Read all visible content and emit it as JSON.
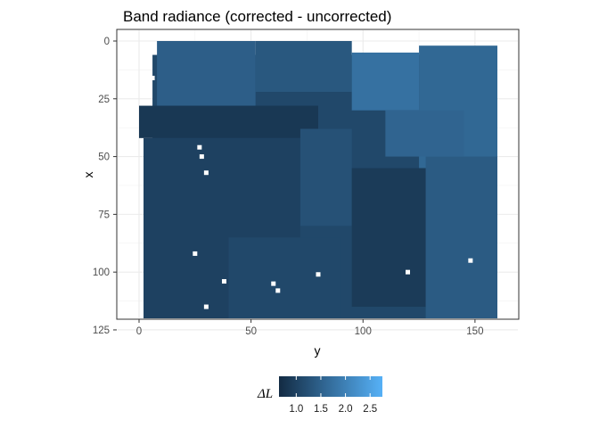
{
  "chart_data": {
    "type": "heatmap",
    "title": "Band radiance (corrected - uncorrected)",
    "xlabel": "y",
    "ylabel": "x",
    "x_range": [
      0,
      160
    ],
    "y_range": [
      0,
      120
    ],
    "y_reversed": true,
    "x_ticks": [
      0,
      50,
      100,
      150
    ],
    "y_ticks": [
      0,
      25,
      50,
      75,
      100,
      125
    ],
    "grid": true,
    "legend": {
      "title": "ΔL",
      "position": "bottom",
      "ticks": [
        1.0,
        1.5,
        2.0,
        2.5
      ],
      "range": [
        0.65,
        2.75
      ],
      "colors": {
        "low": "#132b43",
        "high": "#56b1f7"
      }
    },
    "regions": [
      {
        "x": [
          6,
          160
        ],
        "y": [
          6,
          120
        ],
        "value": 1.1
      },
      {
        "x": [
          8,
          52
        ],
        "y": [
          0,
          28
        ],
        "value": 1.45
      },
      {
        "x": [
          52,
          95
        ],
        "y": [
          0,
          22
        ],
        "value": 1.35
      },
      {
        "x": [
          95,
          125
        ],
        "y": [
          5,
          30
        ],
        "value": 1.75
      },
      {
        "x": [
          125,
          160
        ],
        "y": [
          2,
          55
        ],
        "value": 1.6
      },
      {
        "x": [
          0,
          80
        ],
        "y": [
          28,
          42
        ],
        "value": 0.85
      },
      {
        "x": [
          2,
          72
        ],
        "y": [
          42,
          120
        ],
        "value": 1.0
      },
      {
        "x": [
          72,
          95
        ],
        "y": [
          38,
          80
        ],
        "value": 1.25
      },
      {
        "x": [
          95,
          128
        ],
        "y": [
          55,
          115
        ],
        "value": 0.9
      },
      {
        "x": [
          128,
          160
        ],
        "y": [
          50,
          120
        ],
        "value": 1.4
      },
      {
        "x": [
          40,
          90
        ],
        "y": [
          85,
          120
        ],
        "value": 1.1
      },
      {
        "x": [
          110,
          145
        ],
        "y": [
          30,
          50
        ],
        "value": 1.55
      }
    ],
    "missing_points": [
      [
        27,
        46
      ],
      [
        28,
        50
      ],
      [
        30,
        57
      ],
      [
        25,
        92
      ],
      [
        30,
        115
      ],
      [
        38,
        104
      ],
      [
        60,
        105
      ],
      [
        80,
        101
      ],
      [
        148,
        95
      ],
      [
        62,
        108
      ],
      [
        120,
        100
      ],
      [
        6,
        16
      ]
    ]
  }
}
